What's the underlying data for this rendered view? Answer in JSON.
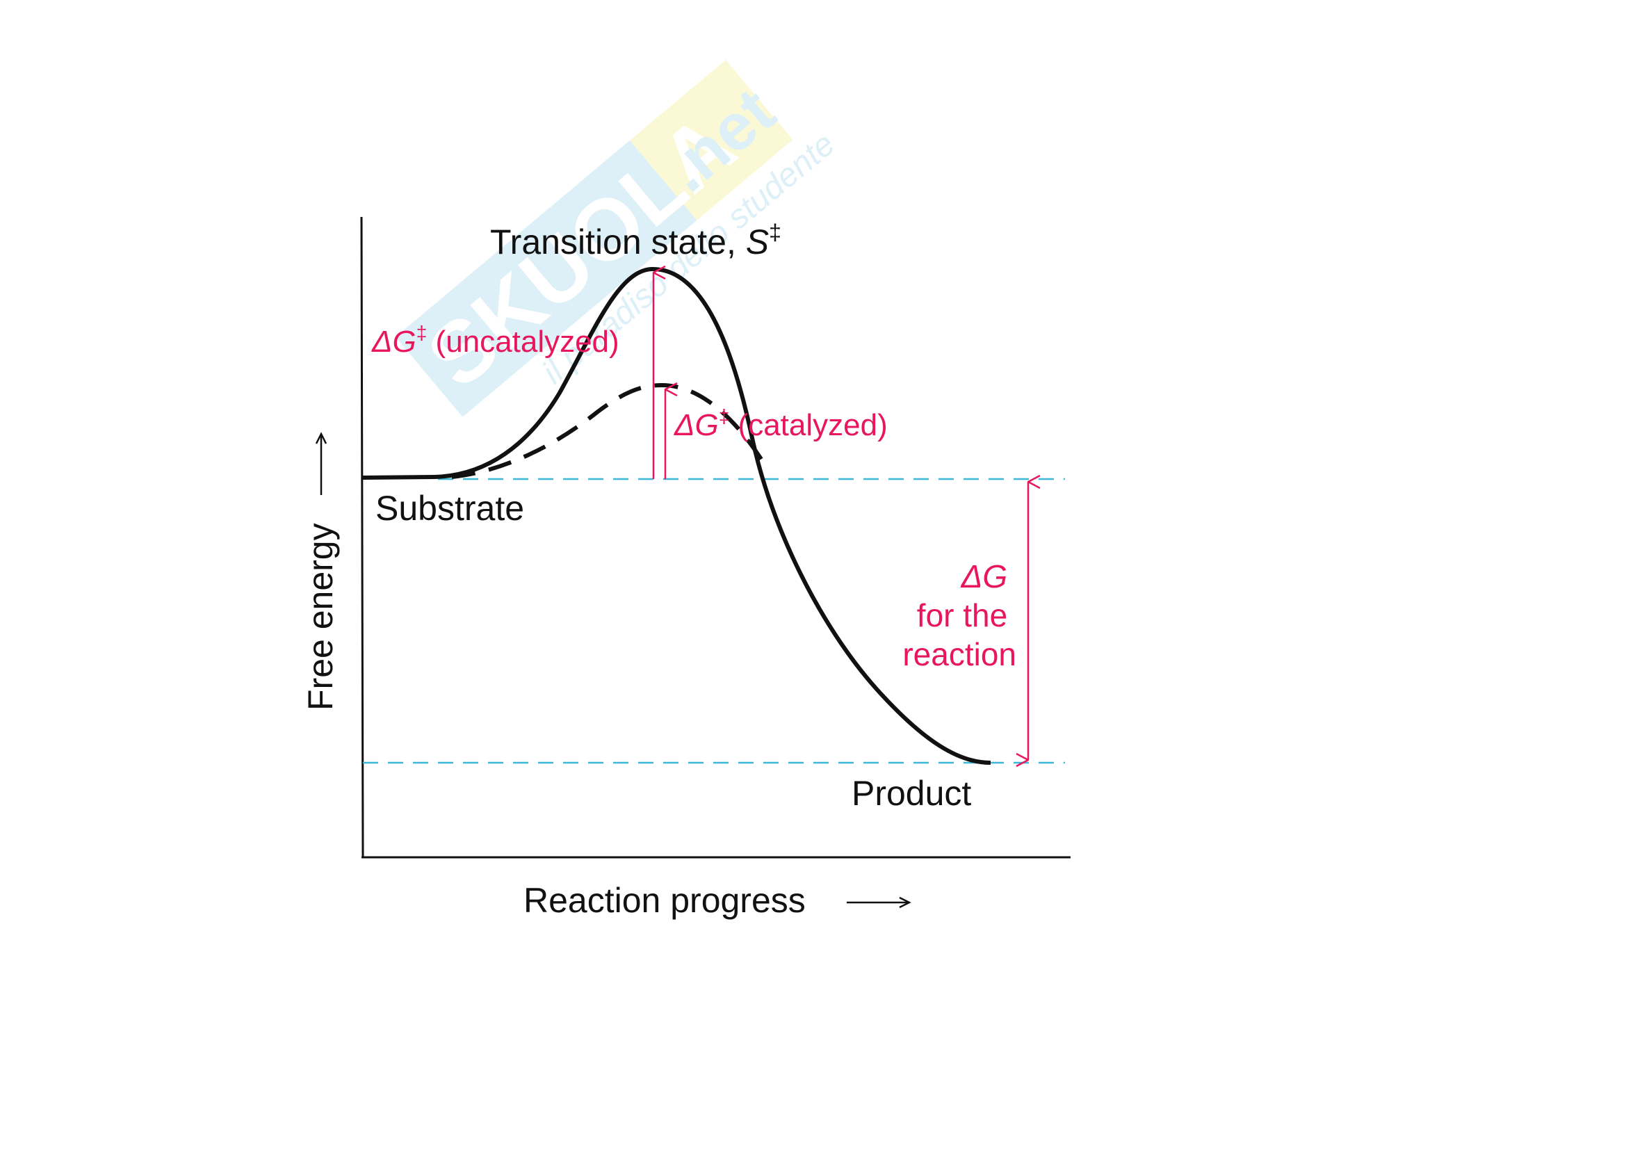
{
  "watermark": {
    "brand": "Skuola",
    "domain": ".net",
    "tagline": "il paradiso dello studente"
  },
  "diagram": {
    "transition_state": {
      "text": "Transition state, ",
      "symbol": "S",
      "sup": "‡"
    },
    "uncatalyzed": {
      "delta": "ΔG",
      "sup": "‡",
      "text": " (uncatalyzed)"
    },
    "catalyzed": {
      "delta": "ΔG",
      "sup": "‡",
      "text": " (catalyzed)"
    },
    "substrate": "Substrate",
    "product": "Product",
    "delta_g_reaction": [
      "ΔG",
      "for the",
      "reaction"
    ],
    "x_axis_label": "Reaction progress",
    "y_axis_label": "Free energy"
  },
  "colors": {
    "annotation": "#e8175d",
    "reference_lines": "#3ab7d6",
    "curve": "#111111"
  }
}
